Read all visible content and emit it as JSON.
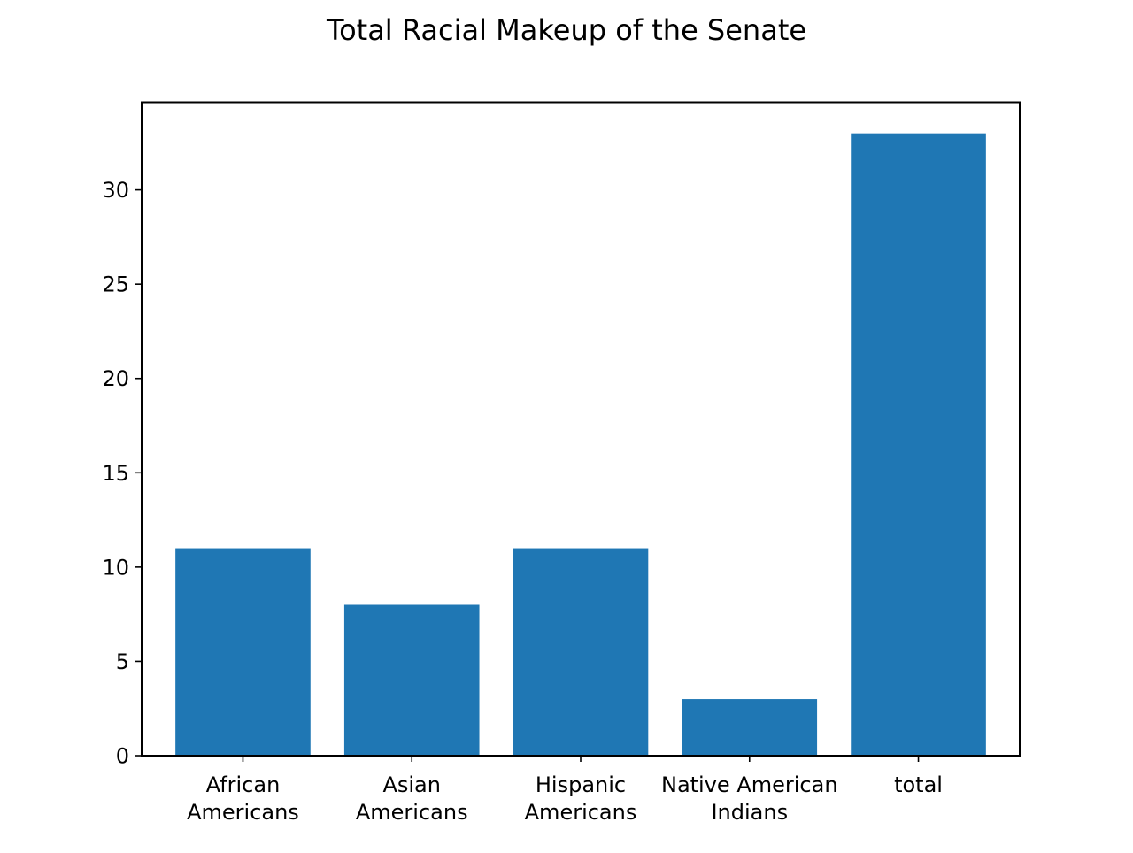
{
  "chart_data": {
    "type": "bar",
    "title": "Total Racial Makeup of the Senate",
    "xlabel": "",
    "ylabel": "",
    "categories": [
      [
        "African",
        "Americans"
      ],
      [
        "Asian",
        "Americans"
      ],
      [
        "Hispanic",
        "Americans"
      ],
      [
        "Native American",
        "Indians"
      ],
      [
        "total"
      ]
    ],
    "values": [
      11,
      8,
      11,
      3,
      33
    ],
    "ylim": [
      0,
      34.65
    ],
    "yticks": [
      0,
      5,
      10,
      15,
      20,
      25,
      30
    ],
    "grid": false,
    "bar_color": "#1f77b4"
  }
}
